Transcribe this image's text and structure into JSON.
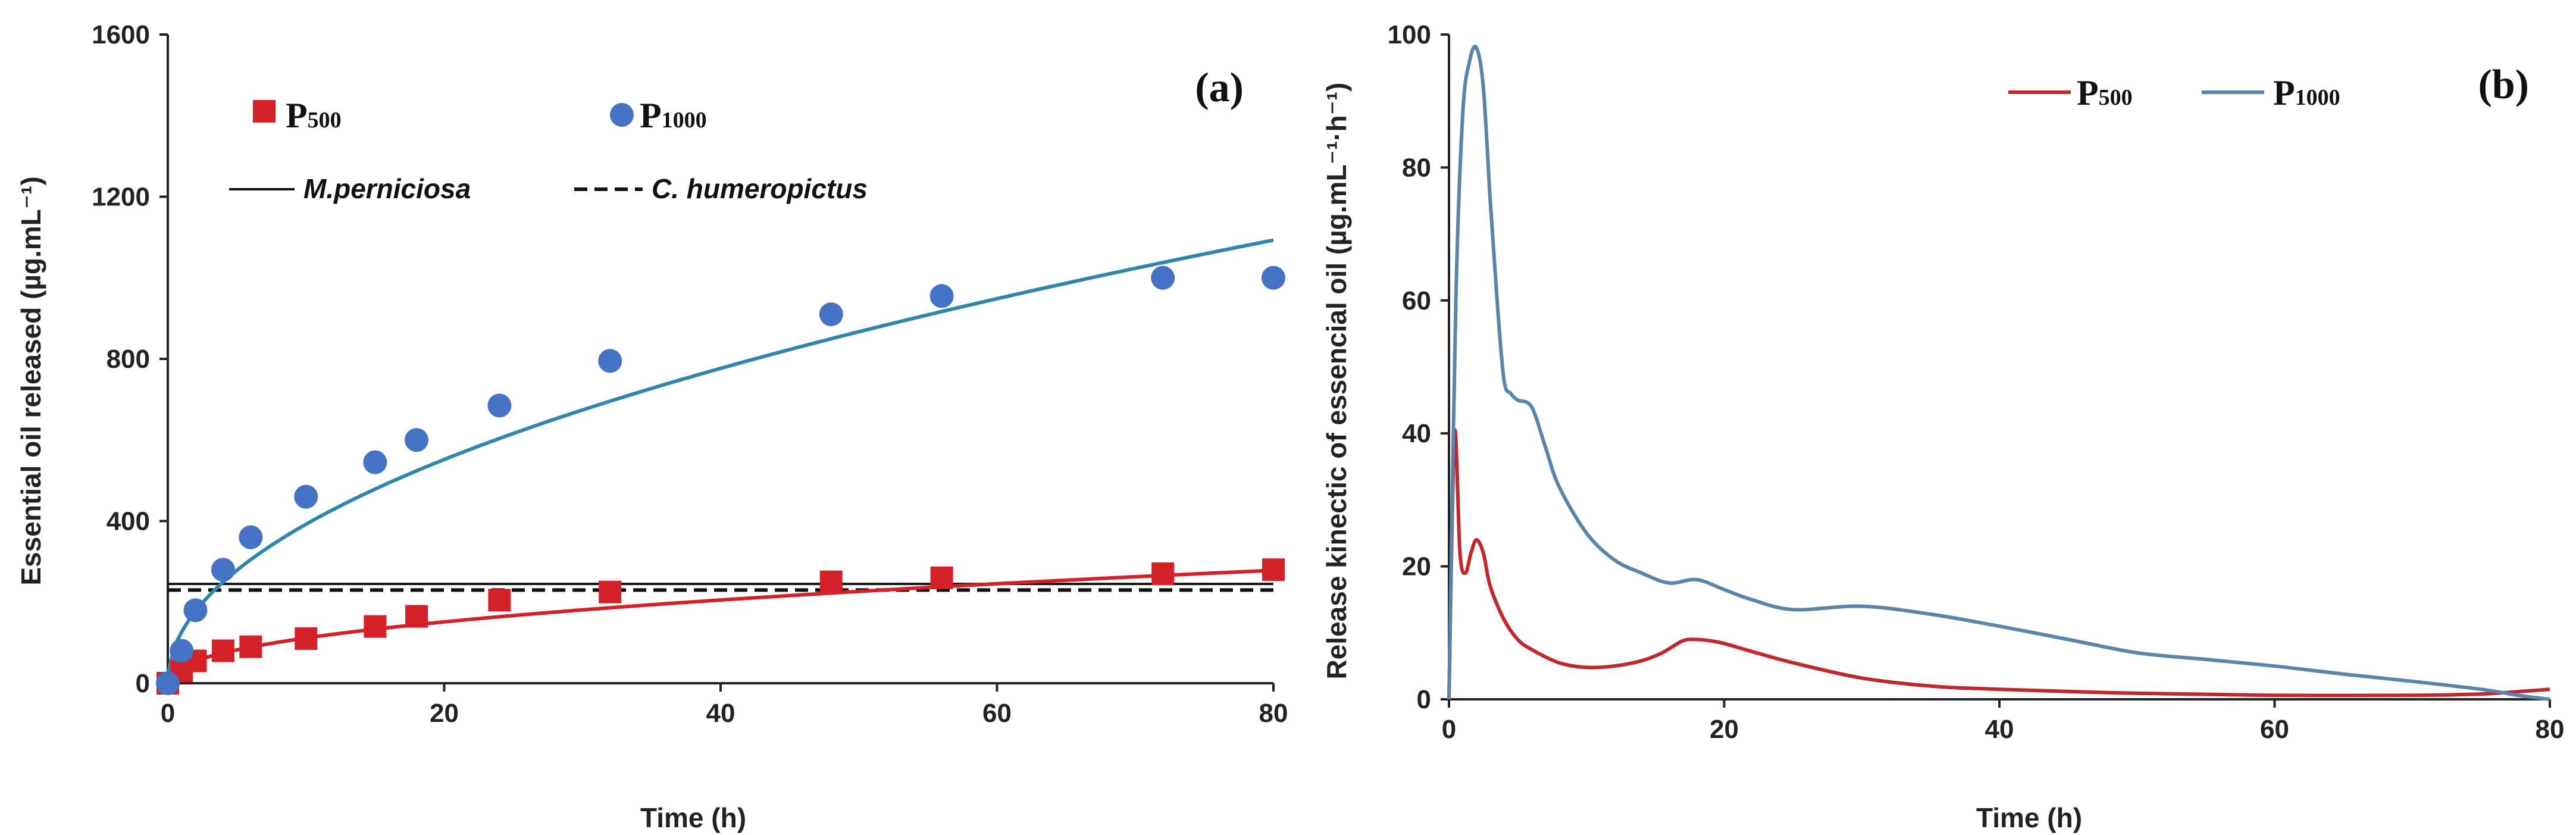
{
  "colors": {
    "p500": "#d42027",
    "p1000": "#4472c4",
    "p1000_fit": "#2e86ab",
    "axis": "#222222"
  },
  "chart_data": [
    {
      "panel": "a",
      "type": "scatter",
      "panel_label": "(a)",
      "xlabel": "Time (h)",
      "ylabel": "Essential oil released (µg.mL⁻¹)",
      "xlim": [
        0,
        80
      ],
      "ylim": [
        0,
        1600
      ],
      "xticks": [
        "0",
        "20",
        "40",
        "60",
        "80"
      ],
      "yticks": [
        "0",
        "400",
        "800",
        "1200",
        "1600"
      ],
      "series": [
        {
          "name": "P500",
          "label_main": "P",
          "label_sub": "500",
          "marker": "square",
          "x": [
            0,
            1,
            2,
            4,
            6,
            10,
            15,
            18,
            24,
            32,
            48,
            56,
            72,
            80
          ],
          "y": [
            0,
            30,
            55,
            80,
            90,
            110,
            140,
            165,
            205,
            225,
            250,
            260,
            270,
            280
          ],
          "fit": {
            "model": "power",
            "a": 40.5,
            "b": 0.44
          }
        },
        {
          "name": "P1000",
          "label_main": "P",
          "label_sub": "1000",
          "marker": "circle",
          "x": [
            0,
            1,
            2,
            4,
            6,
            10,
            15,
            18,
            24,
            32,
            48,
            56,
            72,
            80
          ],
          "y": [
            0,
            80,
            180,
            280,
            360,
            460,
            545,
            600,
            685,
            795,
            910,
            955,
            1000,
            1000
          ],
          "fit": {
            "model": "power",
            "a": 126,
            "b": 0.493
          }
        }
      ],
      "reference_lines": [
        {
          "name": "M. perniciosa",
          "label": "M.perniciosa",
          "style": "solid",
          "y": 245
        },
        {
          "name": "C. humeropictus",
          "label": "C. humeropictus",
          "style": "dashed",
          "y": 230
        }
      ]
    },
    {
      "panel": "b",
      "type": "line",
      "panel_label": "(b)",
      "xlabel": "Time (h)",
      "ylabel": "Release kinectic of essencial oil (µg.mL⁻¹·h⁻¹)",
      "xlim": [
        0,
        80
      ],
      "ylim": [
        0,
        100
      ],
      "xticks": [
        "0",
        "20",
        "40",
        "60",
        "80"
      ],
      "yticks": [
        "0",
        "20",
        "40",
        "60",
        "80",
        "100"
      ],
      "series": [
        {
          "name": "P500",
          "label_main": "P",
          "label_sub": "500",
          "x": [
            0,
            0.4,
            0.8,
            1.2,
            1.6,
            2,
            2.5,
            3,
            4,
            5,
            6,
            8,
            10,
            12,
            14,
            15.5,
            17,
            18,
            19,
            20,
            22,
            25,
            30,
            35,
            40,
            50,
            60,
            70,
            75,
            78,
            80
          ],
          "y": [
            0,
            40,
            22,
            19,
            22,
            24,
            22,
            17,
            12,
            9,
            7.5,
            5.5,
            4.8,
            5,
            5.8,
            7,
            8.8,
            9,
            8.8,
            8.4,
            7.2,
            5.5,
            3.2,
            2,
            1.5,
            0.9,
            0.6,
            0.6,
            0.8,
            1.2,
            1.5
          ]
        },
        {
          "name": "P1000",
          "label_main": "P",
          "label_sub": "1000",
          "x": [
            0,
            0.5,
            1,
            1.5,
            2,
            2.5,
            3,
            3.5,
            4,
            4.5,
            5,
            6,
            7,
            8,
            10,
            12,
            14,
            16,
            18,
            20,
            22,
            25,
            30,
            35,
            40,
            45,
            50,
            55,
            60,
            65,
            70,
            75,
            78,
            80
          ],
          "y": [
            0,
            60,
            88,
            96,
            98,
            92,
            75,
            60,
            48,
            46,
            45,
            44,
            38,
            32,
            25,
            21,
            19,
            17.5,
            18,
            16.5,
            15,
            13.5,
            14,
            12.8,
            11,
            9,
            7,
            6,
            5,
            3.8,
            2.7,
            1.5,
            0.5,
            0
          ]
        }
      ]
    }
  ]
}
